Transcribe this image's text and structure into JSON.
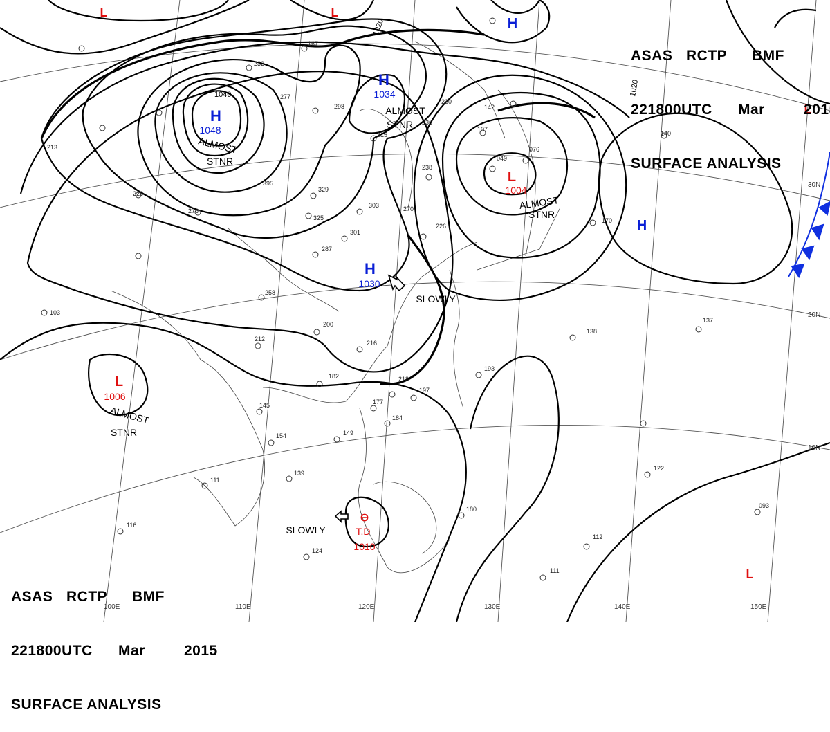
{
  "header": {
    "agency": [
      "ASAS",
      "RCTP",
      "BMF"
    ],
    "time": [
      "221800UTC",
      "Mar",
      "2015"
    ],
    "title": "SURFACE ANALYSIS"
  },
  "colors": {
    "high": "#0a1fd6",
    "low": "#e01010",
    "isobar": "#000000",
    "grid": "#555555",
    "coast": "#444444",
    "front": "#1030e0"
  },
  "pressure_centers": [
    {
      "type": "H",
      "value": "1048",
      "note": "ALMOST STNR"
    },
    {
      "type": "H",
      "value": "1034",
      "note": "ALMOST STNR"
    },
    {
      "type": "H",
      "value": "1030",
      "note": "SLOWLY"
    },
    {
      "type": "H",
      "value": "",
      "note": ""
    },
    {
      "type": "H",
      "value": "",
      "note": ""
    },
    {
      "type": "L",
      "value": "1004",
      "note": "ALMOST STNR"
    },
    {
      "type": "L",
      "value": "1006",
      "note": "ALMOST STNR"
    },
    {
      "type": "L",
      "value": "",
      "note": ""
    },
    {
      "type": "L",
      "value": "",
      "note": ""
    },
    {
      "type": "L",
      "value": "",
      "note": ""
    },
    {
      "type": "L",
      "value": "",
      "note": ""
    },
    {
      "type": "T.D",
      "value": "1010",
      "note": "SLOWLY"
    }
  ],
  "isobar_labels": [
    "1020",
    "1040",
    "1020"
  ],
  "lon_labels": [
    "100E",
    "110E",
    "120E",
    "130E",
    "140E",
    "150E"
  ],
  "lat_labels": [
    "30N",
    "20N",
    "10N"
  ],
  "station_values": [
    "232",
    "277",
    "298",
    "315",
    "329",
    "325",
    "395",
    "303",
    "301",
    "287",
    "270",
    "258",
    "212",
    "200",
    "216",
    "182",
    "218",
    "197",
    "177",
    "184",
    "145",
    "154",
    "149",
    "139",
    "111",
    "116",
    "124",
    "180",
    "193",
    "238",
    "236",
    "230",
    "226",
    "137",
    "138",
    "122",
    "112",
    "111",
    "093",
    "103",
    "140",
    "107",
    "142",
    "076",
    "049",
    "167",
    "213",
    "228",
    "276",
    "170"
  ]
}
